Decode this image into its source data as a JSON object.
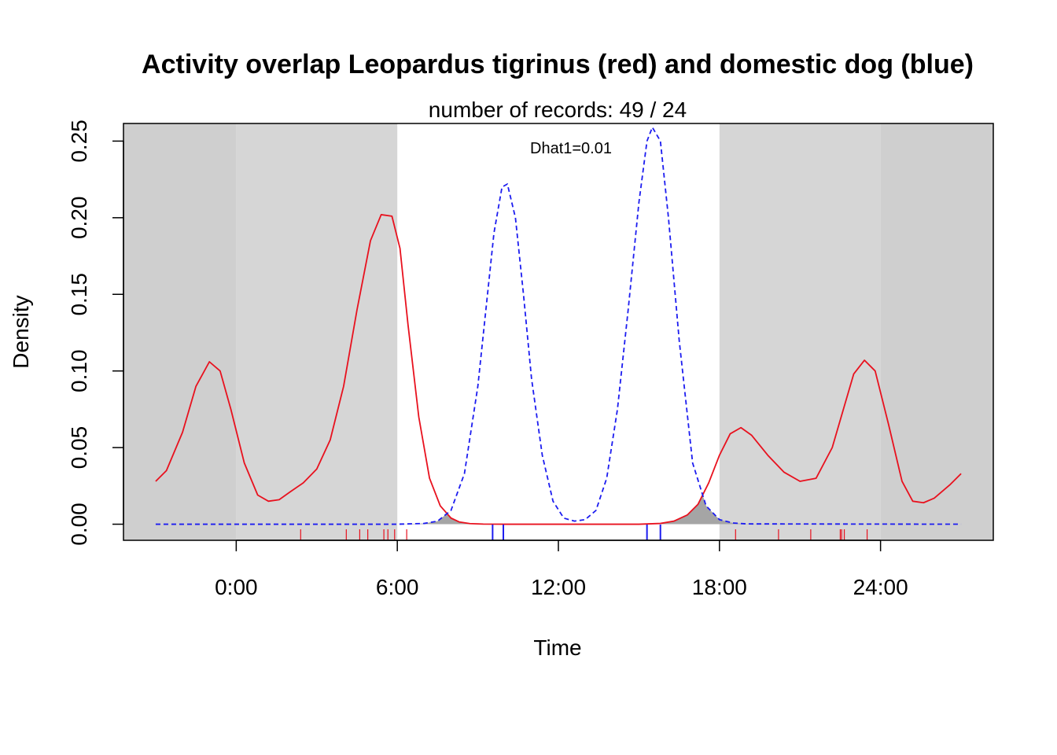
{
  "chart_data": {
    "type": "line",
    "title": "Activity overlap  Leopardus tigrinus (red) and domestic dog (blue)",
    "subtitle": "number of records: 49 / 24",
    "annotation": "Dhat1=0.01",
    "xlabel": "Time",
    "ylabel": "Density",
    "xlim": [
      -4.2,
      28.2
    ],
    "ylim": [
      -0.0105,
      0.2615
    ],
    "x_ticks": [
      0,
      6,
      12,
      18,
      24
    ],
    "x_tick_labels": [
      "0:00",
      "6:00",
      "12:00",
      "18:00",
      "24:00"
    ],
    "y_ticks": [
      0,
      0.05,
      0.1,
      0.15,
      0.2,
      0.25
    ],
    "y_tick_labels": [
      "0.00",
      "0.05",
      "0.10",
      "0.15",
      "0.20",
      "0.25"
    ],
    "grid": false,
    "legend": "none",
    "shading": {
      "night_color": "#d6d6d6",
      "outside_day_color": "#cfcfcf",
      "day_color": "#ffffff",
      "overlap_color": "#a5a5a5",
      "night_before": 6,
      "night_after": 18
    },
    "series": [
      {
        "species": "Leopardus tigrinus",
        "color": "#e8111e",
        "dash": "solid",
        "x": [
          -3,
          -2.6,
          -2,
          -1.5,
          -1,
          -0.6,
          -0.2,
          0.3,
          0.8,
          1.2,
          1.6,
          2,
          2.5,
          3,
          3.5,
          4,
          4.5,
          5,
          5.4,
          5.8,
          6.1,
          6.4,
          6.8,
          7.2,
          7.6,
          8,
          8.3,
          8.7,
          9.2,
          10,
          11,
          12,
          13,
          14,
          15,
          15.8,
          16.3,
          16.8,
          17.2,
          17.6,
          18,
          18.4,
          18.8,
          19.2,
          19.8,
          20.4,
          21,
          21.6,
          22.2,
          22.7,
          23,
          23.4,
          23.8,
          24.3,
          24.8,
          25.2,
          25.6,
          26,
          26.6,
          27
        ],
        "y": [
          0.028,
          0.035,
          0.06,
          0.09,
          0.106,
          0.1,
          0.075,
          0.04,
          0.019,
          0.015,
          0.016,
          0.021,
          0.027,
          0.036,
          0.055,
          0.09,
          0.14,
          0.185,
          0.202,
          0.201,
          0.18,
          0.13,
          0.07,
          0.03,
          0.012,
          0.004,
          0.0015,
          0.0004,
          0.0001,
          0,
          0,
          0,
          0,
          0,
          0,
          0.0005,
          0.002,
          0.006,
          0.013,
          0.027,
          0.045,
          0.059,
          0.063,
          0.058,
          0.045,
          0.034,
          0.028,
          0.03,
          0.05,
          0.08,
          0.098,
          0.107,
          0.1,
          0.065,
          0.028,
          0.015,
          0.014,
          0.017,
          0.026,
          0.033
        ]
      },
      {
        "species": "domestic dog",
        "color": "#1c1cf0",
        "dash": "dashed",
        "x": [
          -3,
          6,
          7,
          7.5,
          8,
          8.5,
          9,
          9.3,
          9.6,
          9.9,
          10.1,
          10.4,
          10.7,
          11,
          11.4,
          11.8,
          12.2,
          12.6,
          13,
          13.4,
          13.8,
          14.2,
          14.6,
          15,
          15.3,
          15.5,
          15.8,
          16.1,
          16.5,
          17,
          17.5,
          18,
          18.5,
          19,
          27
        ],
        "y": [
          0,
          0,
          0.0005,
          0.002,
          0.009,
          0.033,
          0.09,
          0.14,
          0.19,
          0.22,
          0.222,
          0.2,
          0.15,
          0.095,
          0.045,
          0.015,
          0.004,
          0.002,
          0.003,
          0.009,
          0.03,
          0.075,
          0.14,
          0.21,
          0.25,
          0.259,
          0.25,
          0.2,
          0.12,
          0.04,
          0.012,
          0.003,
          0.0008,
          0.0002,
          0
        ]
      }
    ],
    "rug": {
      "red": [
        2.4,
        4.1,
        4.6,
        4.9,
        5.5,
        5.65,
        5.9,
        6.35,
        18.6,
        20.2,
        21.4,
        22.5,
        22.55,
        22.65,
        23.5
      ],
      "blue": [
        9.55,
        9.95,
        15.3,
        15.8
      ]
    }
  }
}
